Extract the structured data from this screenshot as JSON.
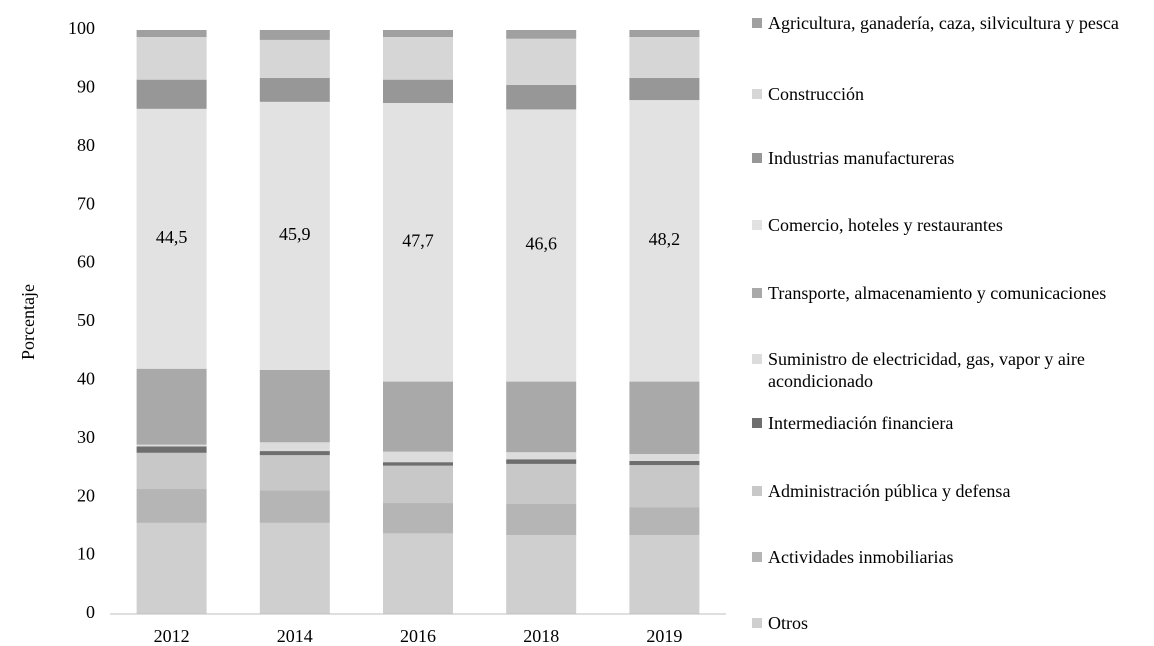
{
  "chart_data": {
    "type": "stacked_bar",
    "y_label": "Porcentaje",
    "categories": [
      "2012",
      "2014",
      "2016",
      "2018",
      "2019"
    ],
    "ylim": [
      0,
      100
    ],
    "yticks": [
      0,
      10,
      20,
      30,
      40,
      50,
      60,
      70,
      80,
      90,
      100
    ],
    "series": [
      {
        "name": "Otros",
        "color": "#cfcfcf",
        "values": [
          15.6,
          15.6,
          13.8,
          13.5,
          13.5
        ]
      },
      {
        "name": "Actividades inmobiliarias",
        "color": "#b5b5b5",
        "values": [
          5.8,
          5.6,
          5.2,
          5.4,
          4.8
        ]
      },
      {
        "name": "Administración pública y defensa",
        "color": "#c8c8c8",
        "values": [
          6.2,
          6.0,
          6.4,
          6.8,
          7.2
        ]
      },
      {
        "name": "Intermediación financiera",
        "color": "#6e6e6e",
        "values": [
          1.1,
          0.7,
          0.6,
          0.8,
          0.7
        ]
      },
      {
        "name": "Suministro de electricidad, gas, vapor y aire acondicionado",
        "color": "#dcdcdc",
        "values": [
          0.3,
          1.5,
          1.8,
          1.2,
          1.2
        ]
      },
      {
        "name": "Transporte, almacenamiento y comunicaciones",
        "color": "#a9a9a9",
        "values": [
          13.0,
          12.4,
          12.0,
          12.1,
          12.4
        ]
      },
      {
        "name": "Comercio, hoteles y restaurantes",
        "color": "#e2e2e2",
        "values": [
          44.5,
          45.9,
          47.7,
          46.6,
          48.2
        ],
        "value_labels": [
          "44,5",
          "45,9",
          "47,7",
          "46,6",
          "48,2"
        ]
      },
      {
        "name": "Industrias manufactureras",
        "color": "#979797",
        "values": [
          5.0,
          4.1,
          4.0,
          4.2,
          3.8
        ]
      },
      {
        "name": "Construcción",
        "color": "#d6d6d6",
        "values": [
          7.3,
          6.5,
          7.3,
          7.9,
          7.0
        ]
      },
      {
        "name": "Agricultura, ganadería, caza, silvicultura y pesca",
        "color": "#a0a0a0",
        "values": [
          1.2,
          1.7,
          1.2,
          1.5,
          1.2
        ]
      }
    ]
  }
}
